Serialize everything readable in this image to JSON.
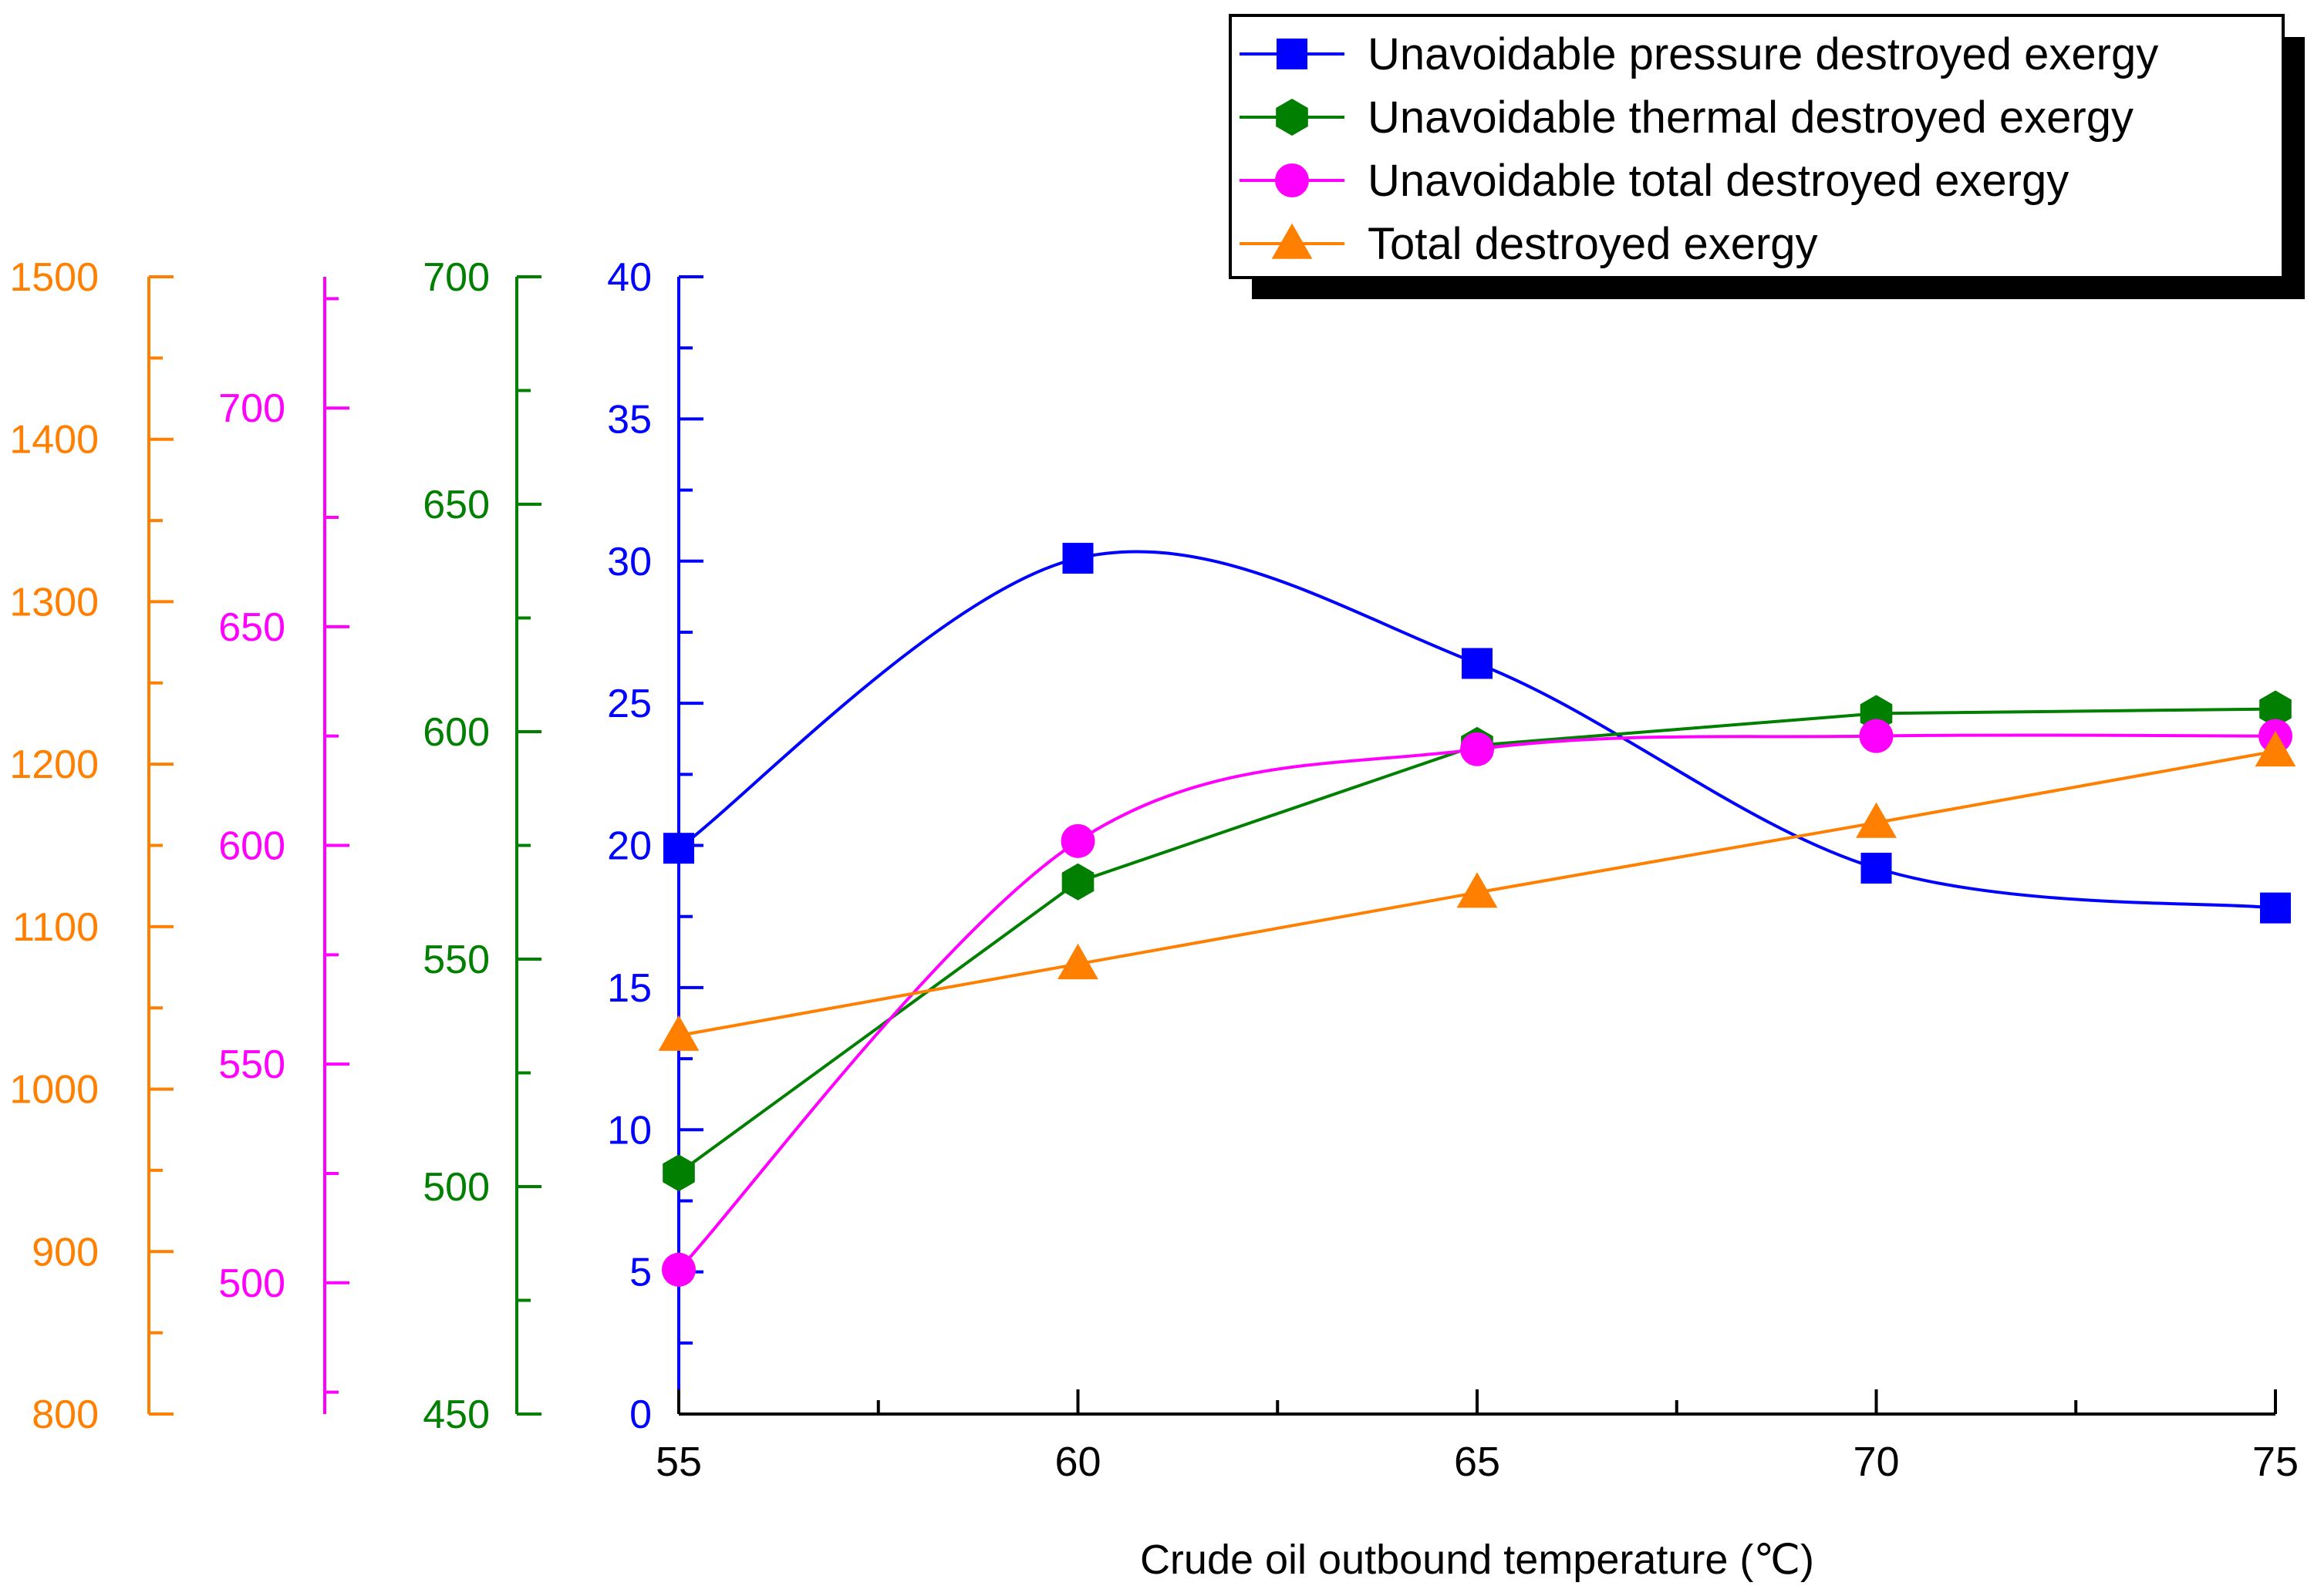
{
  "chart_data": {
    "type": "line",
    "title": "",
    "xlabel": "Crude oil outbound temperature (℃)",
    "x": [
      55,
      60,
      65,
      70,
      75
    ],
    "xlim": [
      55,
      75
    ],
    "xticks": [
      55,
      60,
      65,
      70,
      75
    ],
    "grid": false,
    "legend_position": "top-right",
    "axes": [
      {
        "id": "pressure",
        "color": "#0000ff",
        "ylim": [
          0,
          40
        ],
        "ticks": [
          0,
          5,
          10,
          15,
          20,
          25,
          30,
          35,
          40
        ],
        "position": "inner"
      },
      {
        "id": "thermal",
        "color": "#007f00",
        "ylim": [
          450,
          700
        ],
        "ticks": [
          450,
          500,
          550,
          600,
          650,
          700
        ],
        "position": "offset-1"
      },
      {
        "id": "uv_total",
        "color": "#ff00ff",
        "ylim": [
          470,
          730
        ],
        "ticks": [
          500,
          550,
          600,
          650,
          700
        ],
        "position": "offset-2"
      },
      {
        "id": "total",
        "color": "#ff7f00",
        "ylim": [
          800,
          1500
        ],
        "ticks": [
          800,
          900,
          1000,
          1100,
          1200,
          1300,
          1400,
          1500
        ],
        "position": "offset-3"
      }
    ],
    "series": [
      {
        "name": "Unavoidable pressure destroyed exergy",
        "axis": "pressure",
        "color": "#0000ff",
        "marker": "square",
        "smooth": true,
        "values": [
          19.9,
          30.1,
          26.4,
          19.2,
          17.8
        ]
      },
      {
        "name": "Unavoidable thermal destroyed exergy",
        "axis": "thermal",
        "color": "#007f00",
        "marker": "hexagon",
        "smooth": false,
        "values": [
          503,
          567,
          597,
          604,
          605
        ]
      },
      {
        "name": "Unavoidable total destroyed exergy",
        "axis": "uv_total",
        "color": "#ff00ff",
        "marker": "circle",
        "smooth": true,
        "values": [
          503,
          601,
          622,
          625,
          625
        ]
      },
      {
        "name": "Total destroyed exergy",
        "axis": "total",
        "color": "#ff7f00",
        "marker": "triangle",
        "smooth": false,
        "values": [
          1033,
          1077,
          1121,
          1164,
          1208
        ]
      }
    ]
  }
}
